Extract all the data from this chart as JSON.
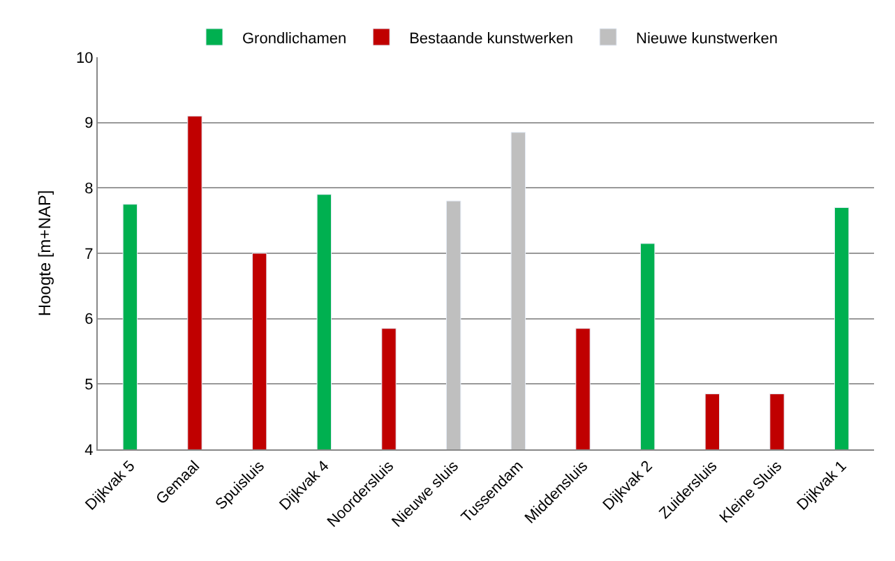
{
  "chart_data": {
    "type": "bar",
    "ylabel": "Hoogte [m+NAP]",
    "categories": [
      "Dijkvak 5",
      "Gemaal",
      "Spuisluis",
      "Dijkvak 4",
      "Noordersluis",
      "Nieuwe sluis",
      "Tussendam",
      "Middensluis",
      "Dijkvak 2",
      "Zuidersluis",
      "Kleine Sluis",
      "Dijkvak 1"
    ],
    "series": [
      {
        "name": "Grondlichamen",
        "color": "#00b050",
        "values": [
          7.75,
          null,
          null,
          7.9,
          null,
          null,
          null,
          null,
          7.15,
          null,
          null,
          7.7
        ]
      },
      {
        "name": "Bestaande kunstwerken",
        "color": "#c00000",
        "values": [
          null,
          9.1,
          7.0,
          null,
          5.85,
          null,
          null,
          5.85,
          null,
          4.85,
          4.85,
          null
        ]
      },
      {
        "name": "Nieuwe kunstwerken",
        "color": "#bfbfbf",
        "values": [
          null,
          null,
          null,
          null,
          null,
          7.8,
          8.85,
          null,
          null,
          null,
          null,
          null
        ]
      }
    ],
    "ylim": [
      4,
      10
    ],
    "yticks": [
      4,
      5,
      6,
      7,
      8,
      9,
      10
    ],
    "grid": "y",
    "legend": "top"
  }
}
